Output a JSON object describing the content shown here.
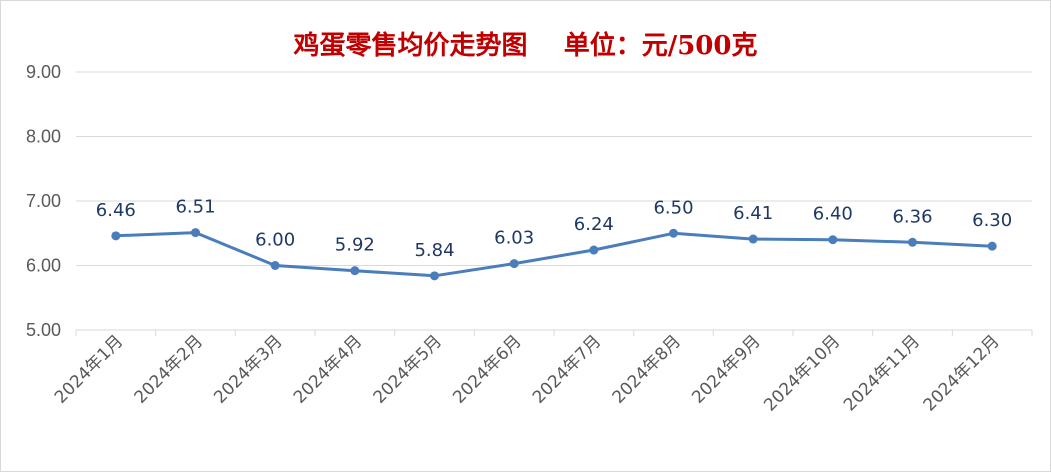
{
  "chart_data": {
    "type": "line",
    "title": "鸡蛋零售均价走势图    单位：元/500克",
    "categories": [
      "2024年1月",
      "2024年2月",
      "2024年3月",
      "2024年4月",
      "2024年5月",
      "2024年6月",
      "2024年7月",
      "2024年8月",
      "2024年9月",
      "2024年10月",
      "2024年11月",
      "2024年12月"
    ],
    "values": [
      6.46,
      6.51,
      6.0,
      5.92,
      5.84,
      6.03,
      6.24,
      6.5,
      6.41,
      6.4,
      6.36,
      6.3
    ],
    "data_labels": [
      "6.46",
      "6.51",
      "6.00",
      "5.92",
      "5.84",
      "6.03",
      "6.24",
      "6.50",
      "6.41",
      "6.40",
      "6.36",
      "6.30"
    ],
    "y_ticks": [
      "5.00",
      "6.00",
      "7.00",
      "8.00",
      "9.00"
    ],
    "ylim": [
      5,
      9
    ],
    "grid": true,
    "line_color": "#4a7ebb"
  }
}
